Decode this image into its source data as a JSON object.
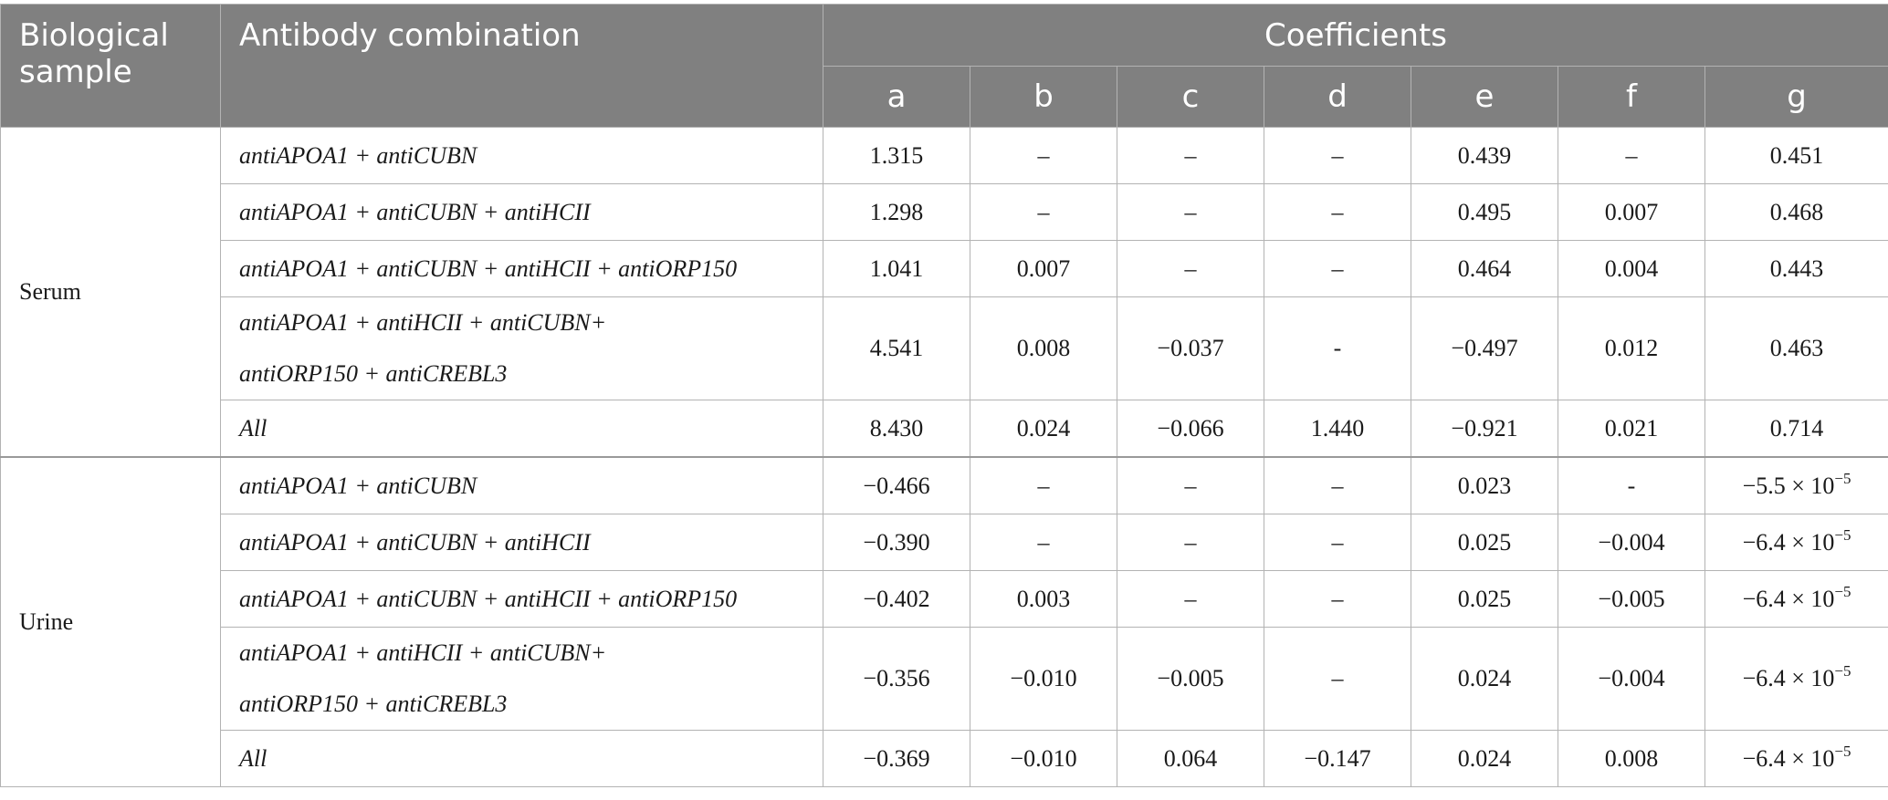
{
  "header": {
    "sample_col": "Biological sample",
    "combo_col": "Antibody combination",
    "coefficients": "Coefficients",
    "letters": [
      "a",
      "b",
      "c",
      "d",
      "e",
      "f",
      "g"
    ]
  },
  "groups": [
    {
      "sample": "Serum",
      "rows": [
        {
          "combo": [
            "antiAPOA1 + antiCUBN"
          ],
          "values": [
            "1.315",
            "–",
            "–",
            "–",
            "0.439",
            "–",
            "0.451"
          ]
        },
        {
          "combo": [
            "antiAPOA1 + antiCUBN + antiHCII"
          ],
          "values": [
            "1.298",
            "–",
            "–",
            "–",
            "0.495",
            "0.007",
            "0.468"
          ]
        },
        {
          "combo": [
            "antiAPOA1 + antiCUBN + antiHCII + antiORP150"
          ],
          "values": [
            "1.041",
            "0.007",
            "–",
            "–",
            "0.464",
            "0.004",
            "0.443"
          ]
        },
        {
          "combo": [
            "antiAPOA1 + antiHCII + antiCUBN+",
            "antiORP150 + antiCREBL3"
          ],
          "values": [
            "4.541",
            "0.008",
            "−0.037",
            "-",
            "−0.497",
            "0.012",
            "0.463"
          ]
        },
        {
          "combo": [
            "All"
          ],
          "values": [
            "8.430",
            "0.024",
            "−0.066",
            "1.440",
            "−0.921",
            "0.021",
            "0.714"
          ]
        }
      ]
    },
    {
      "sample": "Urine",
      "rows": [
        {
          "combo": [
            "antiAPOA1 + antiCUBN"
          ],
          "values": [
            "−0.466",
            "–",
            "–",
            "–",
            "0.023",
            "-",
            "−5.5 × 10"
          ],
          "g_exp": "−5"
        },
        {
          "combo": [
            "antiAPOA1 + antiCUBN + antiHCII"
          ],
          "values": [
            "−0.390",
            "–",
            "–",
            "–",
            "0.025",
            "−0.004",
            "−6.4 × 10"
          ],
          "g_exp": "−5"
        },
        {
          "combo": [
            "antiAPOA1 + antiCUBN + antiHCII + antiORP150"
          ],
          "values": [
            "−0.402",
            "0.003",
            "–",
            "–",
            "0.025",
            "−0.005",
            "−6.4 × 10"
          ],
          "g_exp": "−5"
        },
        {
          "combo": [
            "antiAPOA1 + antiHCII + antiCUBN+",
            "antiORP150 + antiCREBL3"
          ],
          "values": [
            "−0.356",
            "−0.010",
            "−0.005",
            "–",
            "0.024",
            "−0.004",
            "−6.4 × 10"
          ],
          "g_exp": "−5"
        },
        {
          "combo": [
            "All"
          ],
          "values": [
            "−0.369",
            "−0.010",
            "0.064",
            "−0.147",
            "0.024",
            "0.008",
            "−6.4 × 10"
          ],
          "g_exp": "−5"
        }
      ]
    }
  ]
}
